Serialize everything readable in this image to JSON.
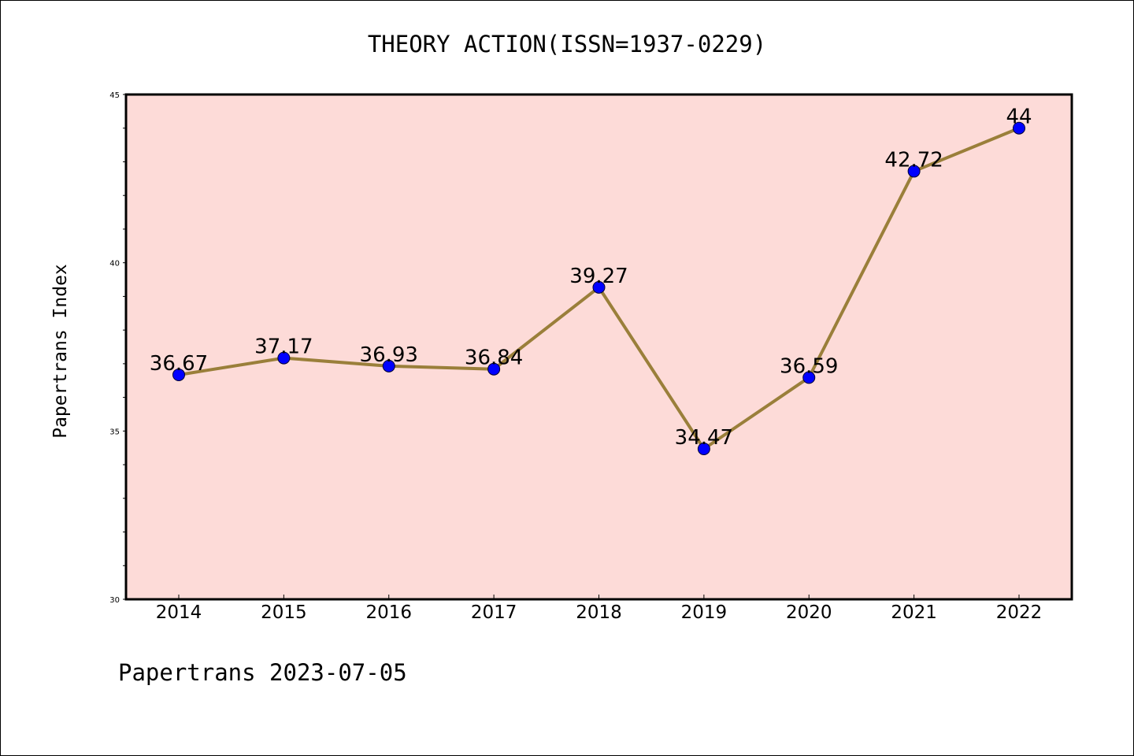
{
  "chart_data": {
    "type": "line",
    "title": "THEORY ACTION(ISSN=1937-0229)",
    "xlabel": "",
    "ylabel": "Papertrans Index",
    "categories": [
      "2014",
      "2015",
      "2016",
      "2017",
      "2018",
      "2019",
      "2020",
      "2021",
      "2022"
    ],
    "values": [
      36.67,
      37.17,
      36.93,
      36.84,
      39.27,
      34.47,
      36.59,
      42.72,
      44
    ],
    "value_labels": [
      "36.67",
      "37.17",
      "36.93",
      "36.84",
      "39.27",
      "34.47",
      "36.59",
      "42.72",
      "44"
    ],
    "ylim": [
      30,
      45
    ],
    "yticks": [
      "30",
      "35",
      "40",
      "45"
    ],
    "grid": false,
    "legend": "none",
    "colors": {
      "plot_background": "#fddbd8",
      "line": "#9a7f3a",
      "marker": "#0000ff"
    }
  },
  "footer": "Papertrans 2023-07-05"
}
